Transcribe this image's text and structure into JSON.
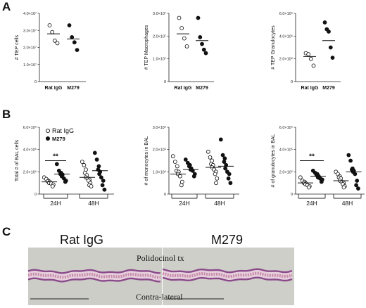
{
  "panels": {
    "A": {
      "letter": "A"
    },
    "B": {
      "letter": "B"
    },
    "C": {
      "letter": "C"
    }
  },
  "chart_data": [
    {
      "type": "scatter",
      "panel": "A",
      "ylabel": "# TEP cells",
      "categories": [
        "Rat IgG",
        "M279"
      ],
      "yticks": [
        "0",
        "1.0×10⁷",
        "2.0×10⁷",
        "3.0×10⁷",
        "4.0×10⁷"
      ],
      "ylim": [
        0,
        40000000
      ],
      "series": [
        {
          "group": "Rat IgG",
          "marker": "open",
          "values": [
            33000000,
            29000000,
            24000000,
            22500000
          ],
          "mean": 28000000
        },
        {
          "group": "M279",
          "marker": "filled",
          "values": [
            33000000,
            26000000,
            23000000,
            18500000
          ],
          "mean": 25000000
        }
      ]
    },
    {
      "type": "scatter",
      "panel": "A",
      "ylabel": "# TEP Macrophages",
      "categories": [
        "Rat IgG",
        "M279"
      ],
      "yticks": [
        "0",
        "1.0×10⁷",
        "2.0×10⁷",
        "3.0×10⁷"
      ],
      "ylim": [
        0,
        30000000
      ],
      "series": [
        {
          "group": "Rat IgG",
          "marker": "open",
          "values": [
            28000000,
            23500000,
            19000000,
            15500000
          ],
          "mean": 21000000
        },
        {
          "group": "M279",
          "marker": "filled",
          "values": [
            28000000,
            19500000,
            16500000,
            14000000,
            12500000
          ],
          "mean": 18000000
        }
      ]
    },
    {
      "type": "scatter",
      "panel": "A",
      "ylabel": "# TEP Granulocytes",
      "categories": [
        "Rat IgG",
        "M279"
      ],
      "yticks": [
        "0",
        "2.0×10⁶",
        "4.0×10⁶",
        "6.0×10⁶"
      ],
      "ylim": [
        0,
        6000000
      ],
      "series": [
        {
          "group": "Rat IgG",
          "marker": "open",
          "values": [
            2500000,
            2400000,
            2000000,
            1400000
          ],
          "mean": 2200000
        },
        {
          "group": "M279",
          "marker": "filled",
          "values": [
            5200000,
            4600000,
            4400000,
            3000000,
            2100000
          ],
          "mean": 3600000
        }
      ]
    },
    {
      "type": "scatter",
      "panel": "B",
      "ylabel": "Total # of BAL cells",
      "categories": [
        "24H",
        "48H"
      ],
      "yticks": [
        "0",
        "2.0×10⁶",
        "4.0×10⁶",
        "6.0×10⁶"
      ],
      "ylim": [
        0,
        6000000
      ],
      "legend": [
        "Rat IgG",
        "M279"
      ],
      "significance": {
        "label": "**",
        "between": "24H"
      },
      "series": [
        {
          "group": "24H",
          "name": "Rat IgG",
          "marker": "open",
          "values": [
            1500000,
            1350000,
            1200000,
            1150000,
            1100000,
            1000000,
            950000,
            850000,
            700000
          ],
          "mean": 1100000
        },
        {
          "group": "24H",
          "name": "M279",
          "marker": "filled",
          "values": [
            2700000,
            2100000,
            1900000,
            1800000,
            1750000,
            1600000,
            1400000,
            1200000,
            1100000
          ],
          "mean": 1800000
        },
        {
          "group": "48H",
          "name": "Rat IgG",
          "marker": "open",
          "values": [
            2900000,
            2600000,
            2200000,
            1900000,
            1700000,
            1500000,
            1400000,
            1300000,
            1200000,
            1000000,
            800000,
            700000
          ],
          "mean": 1500000
        },
        {
          "group": "48H",
          "name": "M279",
          "marker": "filled",
          "values": [
            3700000,
            3100000,
            2500000,
            2200000,
            2000000,
            1800000,
            1500000,
            1200000,
            800000,
            400000
          ],
          "mean": 2100000
        }
      ]
    },
    {
      "type": "scatter",
      "panel": "B",
      "ylabel": "# of monocytes in BAL",
      "categories": [
        "24H",
        "48H"
      ],
      "yticks": [
        "0",
        "1.0×10⁶",
        "2.0×10⁶",
        "3.0×10⁶"
      ],
      "ylim": [
        0,
        3000000
      ],
      "series": [
        {
          "group": "24H",
          "name": "Rat IgG",
          "marker": "open",
          "values": [
            1700000,
            1450000,
            1250000,
            1050000,
            1000000,
            900000,
            800000,
            550000,
            400000
          ],
          "mean": 900000
        },
        {
          "group": "24H",
          "name": "M279",
          "marker": "filled",
          "values": [
            1550000,
            1400000,
            1300000,
            1250000,
            1150000,
            1100000,
            1050000,
            900000,
            800000
          ],
          "mean": 1100000
        },
        {
          "group": "48H",
          "name": "Rat IgG",
          "marker": "open",
          "values": [
            1900000,
            1650000,
            1500000,
            1350000,
            1300000,
            1200000,
            1100000,
            1000000,
            900000,
            700000,
            500000
          ],
          "mean": 1200000
        },
        {
          "group": "48H",
          "name": "M279",
          "marker": "filled",
          "values": [
            2450000,
            1750000,
            1600000,
            1450000,
            1300000,
            1150000,
            1000000,
            900000,
            700000,
            500000
          ],
          "mean": 1250000
        }
      ]
    },
    {
      "type": "scatter",
      "panel": "B",
      "ylabel": "# of granulocytes in BAL",
      "categories": [
        "24H",
        "48H"
      ],
      "yticks": [
        "0",
        "2.0×10⁵",
        "4.0×10⁵",
        "6.0×10⁵"
      ],
      "ylim": [
        0,
        600000
      ],
      "significance": {
        "label": "**",
        "between": "24H"
      },
      "series": [
        {
          "group": "24H",
          "name": "Rat IgG",
          "marker": "open",
          "values": [
            150000,
            120000,
            110000,
            100000,
            95000,
            90000,
            80000,
            70000,
            60000
          ],
          "mean": 100000
        },
        {
          "group": "24H",
          "name": "M279",
          "marker": "filled",
          "values": [
            210000,
            190000,
            180000,
            170000,
            160000,
            150000,
            140000,
            130000,
            110000
          ],
          "mean": 160000
        },
        {
          "group": "48H",
          "name": "Rat IgG",
          "marker": "open",
          "values": [
            200000,
            180000,
            160000,
            150000,
            140000,
            120000,
            110000,
            100000,
            90000,
            70000,
            60000
          ],
          "mean": 120000
        },
        {
          "group": "48H",
          "name": "M279",
          "marker": "filled",
          "values": [
            350000,
            300000,
            230000,
            220000,
            210000,
            200000,
            180000,
            120000,
            80000,
            50000
          ],
          "mean": 200000
        }
      ]
    }
  ],
  "histology": {
    "left_label": "Rat IgG",
    "right_label": "M279",
    "top_caption": "Polidocinol tx",
    "bottom_caption": "Contra-lateral",
    "colors": {
      "background": "#cdcdc8",
      "tissue_pink": "#c78aa8",
      "tissue_purple": "#8a4a8a",
      "tissue_light": "#e6cfdc"
    }
  }
}
